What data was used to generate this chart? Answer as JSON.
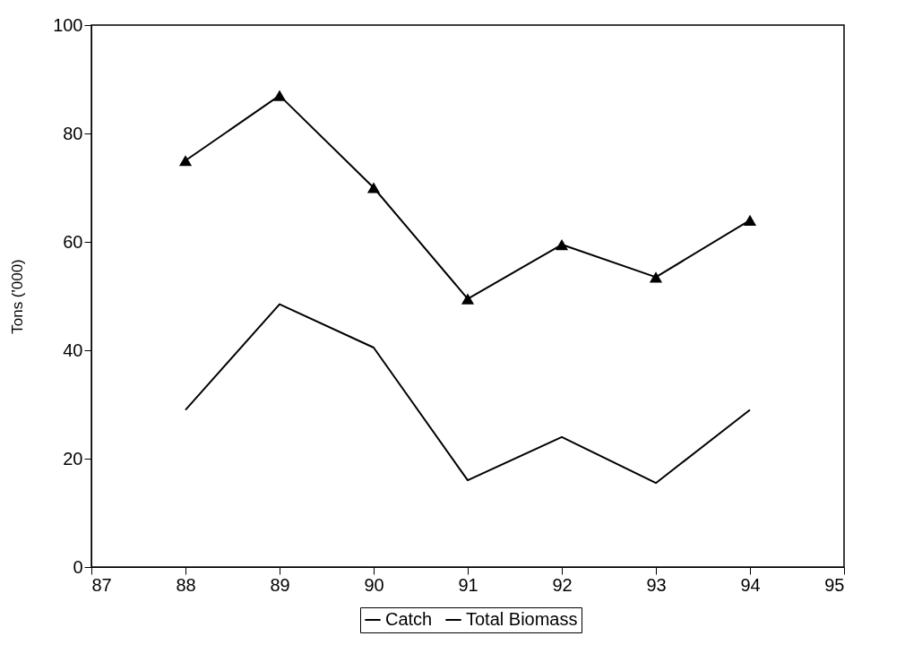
{
  "chart_data": {
    "type": "line",
    "ylabel": "Tons ('000)",
    "x": [
      88,
      89,
      90,
      91,
      92,
      93,
      94
    ],
    "series": [
      {
        "name": "Catch",
        "color": "#000000",
        "marker": "none",
        "values": [
          29,
          48.5,
          40.5,
          16,
          24,
          15.5,
          29
        ]
      },
      {
        "name": "Total Biomass",
        "color": "#000000",
        "marker": "triangle",
        "values": [
          75,
          87,
          70,
          49.5,
          59.5,
          53.5,
          64
        ]
      }
    ],
    "xlim": [
      87,
      95
    ],
    "xticks": [
      87,
      88,
      89,
      90,
      91,
      92,
      93,
      94,
      95
    ],
    "ylim": [
      0,
      100
    ],
    "yticks": [
      0,
      20,
      40,
      60,
      80,
      100
    ],
    "grid": false,
    "legend": "bottom",
    "line_style": "solid"
  }
}
